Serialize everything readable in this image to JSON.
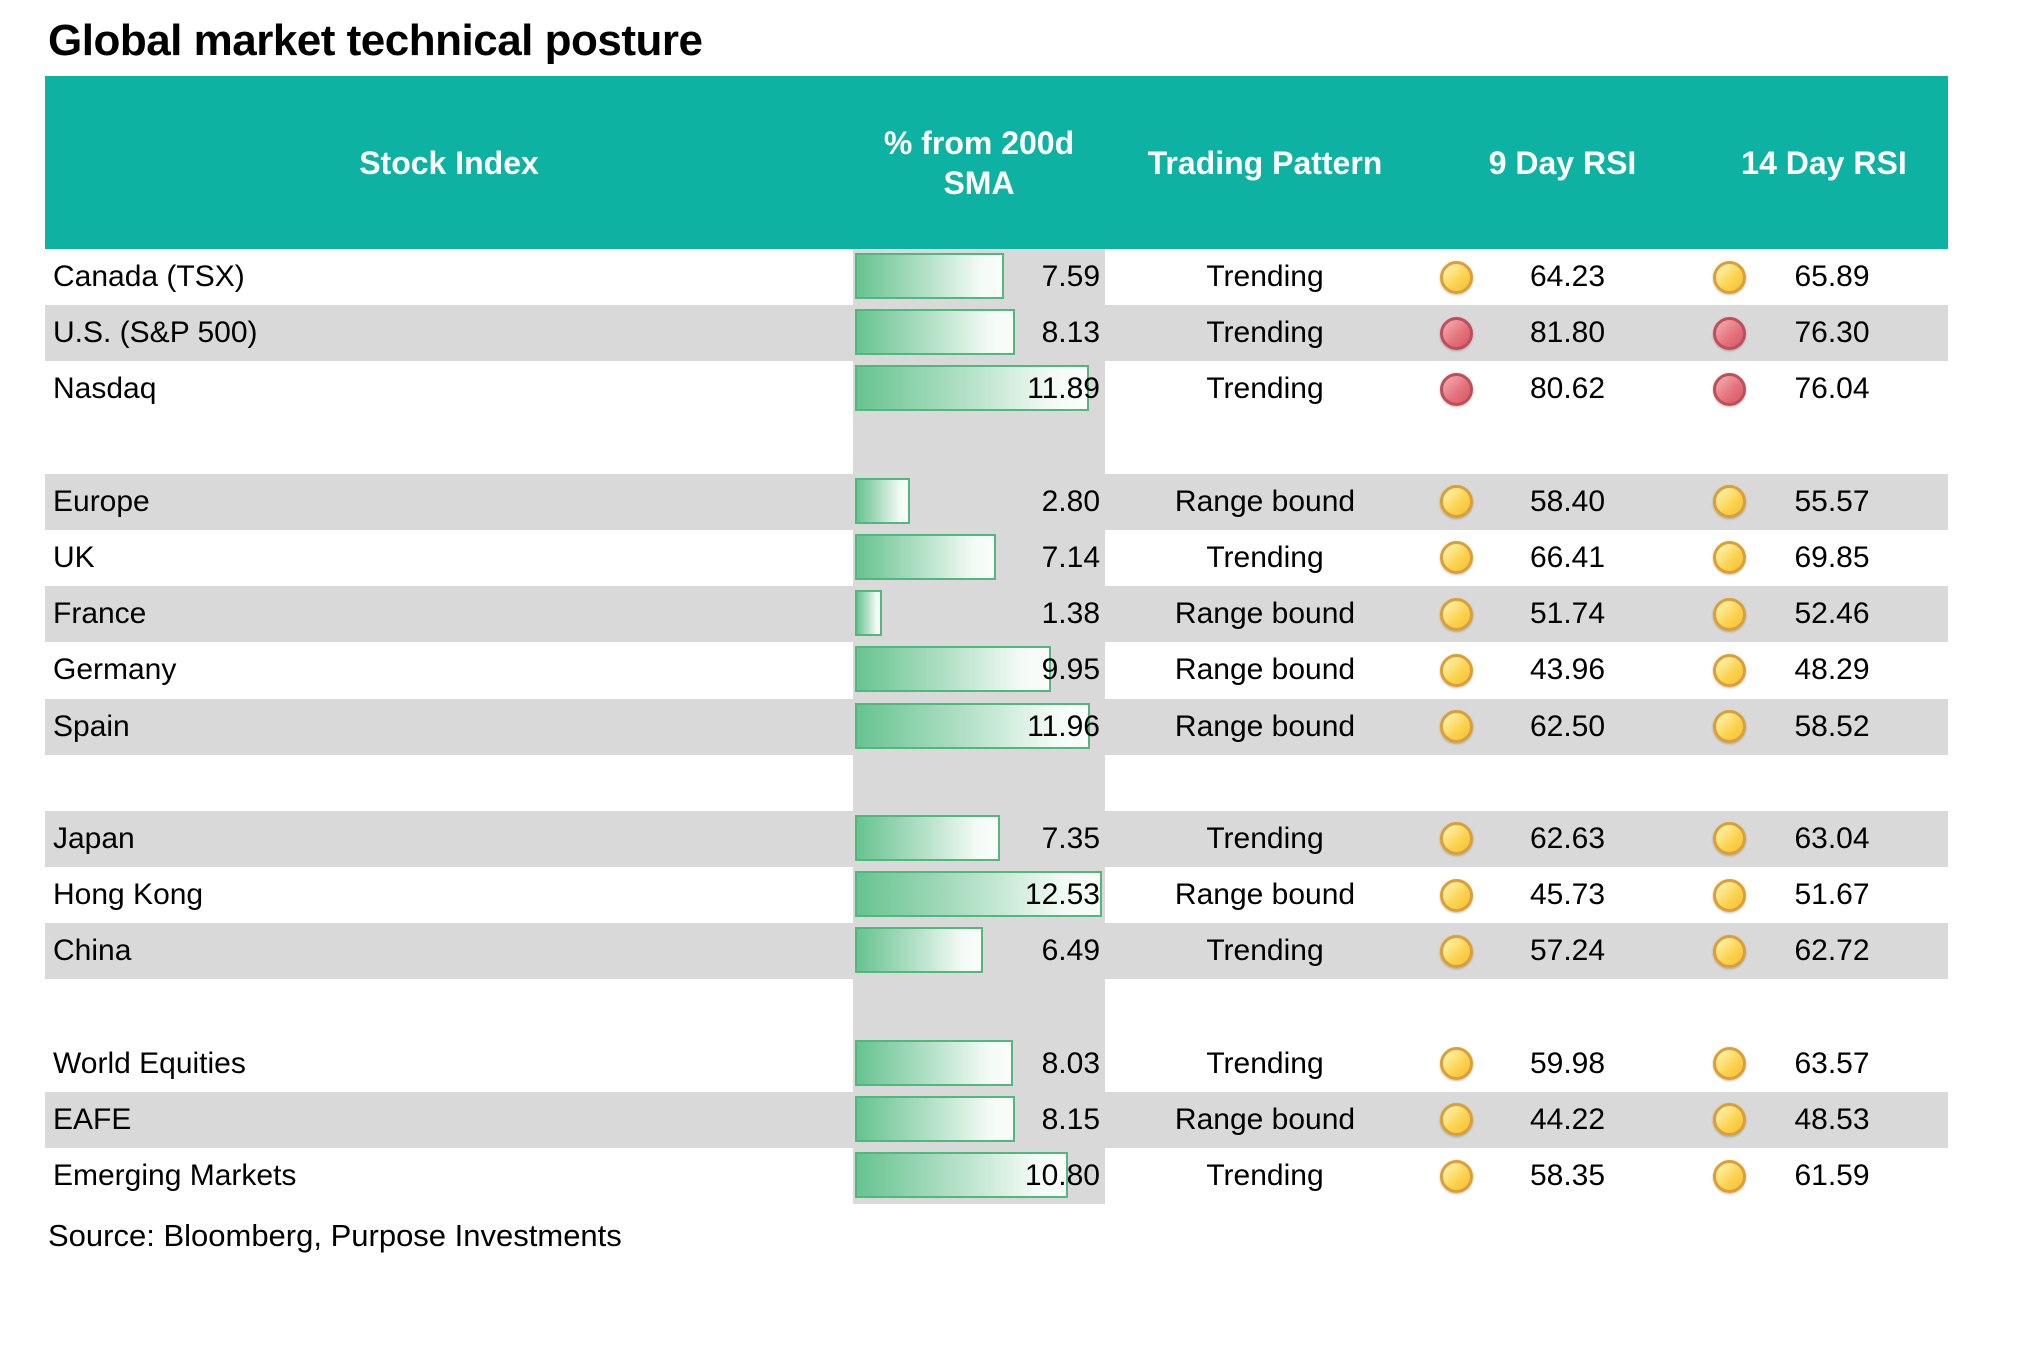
{
  "title": "Global market technical posture",
  "source": "Source: Bloomberg, Purpose Investments",
  "colors": {
    "header_teal": "#0db2a2",
    "row_stripe_gray": "#d9d9d9",
    "bar_green_start": "#67c390",
    "bar_green_border": "#4fb87a",
    "status_caution_fill": "#fbd24e",
    "status_caution_border": "#dd9e33",
    "status_overbought_fill": "#e2707a",
    "status_overbought_border": "#bf4e59"
  },
  "chart_data": {
    "type": "table",
    "title": "Global market technical posture",
    "columns": [
      "Stock Index",
      "% from 200d SMA",
      "Trading Pattern",
      "9 Day RSI",
      "14 Day RSI"
    ],
    "bar_axis_max": 12.7,
    "bar_column_note": "in-cell data bars, green gradient, scale 0 to ~12.7 pct",
    "status_legend": {
      "caution": "yellow circle",
      "overbought": "red circle"
    },
    "rows": [
      {
        "index": "Canada (TSX)",
        "sma": 7.59,
        "pattern": "Trending",
        "rsi9": 64.23,
        "rsi9_level": "caution",
        "rsi14": 65.89,
        "rsi14_level": "caution",
        "shaded": false
      },
      {
        "index": "U.S. (S&P 500)",
        "sma": 8.13,
        "pattern": "Trending",
        "rsi9": 81.8,
        "rsi9_level": "overbought",
        "rsi14": 76.3,
        "rsi14_level": "overbought",
        "shaded": true
      },
      {
        "index": "Nasdaq",
        "sma": 11.89,
        "pattern": "Trending",
        "rsi9": 80.62,
        "rsi9_level": "overbought",
        "rsi14": 76.04,
        "rsi14_level": "overbought",
        "shaded": false
      },
      {
        "type": "spacer"
      },
      {
        "index": "Europe",
        "sma": 2.8,
        "pattern": "Range bound",
        "rsi9": 58.4,
        "rsi9_level": "caution",
        "rsi14": 55.57,
        "rsi14_level": "caution",
        "shaded": true
      },
      {
        "index": "UK",
        "sma": 7.14,
        "pattern": "Trending",
        "rsi9": 66.41,
        "rsi9_level": "caution",
        "rsi14": 69.85,
        "rsi14_level": "caution",
        "shaded": false
      },
      {
        "index": "France",
        "sma": 1.38,
        "pattern": "Range bound",
        "rsi9": 51.74,
        "rsi9_level": "caution",
        "rsi14": 52.46,
        "rsi14_level": "caution",
        "shaded": true
      },
      {
        "index": "Germany",
        "sma": 9.95,
        "pattern": "Range bound",
        "rsi9": 43.96,
        "rsi9_level": "caution",
        "rsi14": 48.29,
        "rsi14_level": "caution",
        "shaded": false
      },
      {
        "index": "Spain",
        "sma": 11.96,
        "pattern": "Range bound",
        "rsi9": 62.5,
        "rsi9_level": "caution",
        "rsi14": 58.52,
        "rsi14_level": "caution",
        "shaded": true
      },
      {
        "type": "spacer"
      },
      {
        "index": "Japan",
        "sma": 7.35,
        "pattern": "Trending",
        "rsi9": 62.63,
        "rsi9_level": "caution",
        "rsi14": 63.04,
        "rsi14_level": "caution",
        "shaded": true
      },
      {
        "index": "Hong Kong",
        "sma": 12.53,
        "pattern": "Range bound",
        "rsi9": 45.73,
        "rsi9_level": "caution",
        "rsi14": 51.67,
        "rsi14_level": "caution",
        "shaded": false
      },
      {
        "index": "China",
        "sma": 6.49,
        "pattern": "Trending",
        "rsi9": 57.24,
        "rsi9_level": "caution",
        "rsi14": 62.72,
        "rsi14_level": "caution",
        "shaded": true
      },
      {
        "type": "spacer"
      },
      {
        "index": "World Equities",
        "sma": 8.03,
        "pattern": "Trending",
        "rsi9": 59.98,
        "rsi9_level": "caution",
        "rsi14": 63.57,
        "rsi14_level": "caution",
        "shaded": false
      },
      {
        "index": "EAFE",
        "sma": 8.15,
        "pattern": "Range bound",
        "rsi9": 44.22,
        "rsi9_level": "caution",
        "rsi14": 48.53,
        "rsi14_level": "caution",
        "shaded": true
      },
      {
        "index": "Emerging Markets",
        "sma": 10.8,
        "pattern": "Trending",
        "rsi9": 58.35,
        "rsi9_level": "caution",
        "rsi14": 61.59,
        "rsi14_level": "caution",
        "shaded": false
      }
    ]
  }
}
